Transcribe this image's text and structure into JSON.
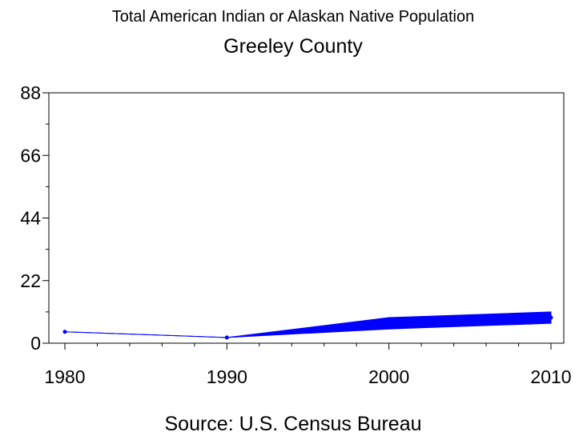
{
  "chart_data": {
    "type": "line",
    "title": "Total American Indian or Alaskan Native Population",
    "subtitle": "Greeley County",
    "source": "Source: U.S. Census Bureau",
    "xlabel": "",
    "ylabel": "",
    "x": [
      1980,
      1990,
      2000,
      2010
    ],
    "xticks": [
      "1980",
      "1990",
      "2000",
      "2010"
    ],
    "yticks": [
      "0",
      "22",
      "44",
      "66",
      "88"
    ],
    "ylim": [
      0,
      88
    ],
    "xlim": [
      1980,
      2010
    ],
    "grid": false,
    "series": [
      {
        "values": [
          4,
          2,
          6,
          9
        ],
        "band_low": [
          4,
          2,
          5,
          7
        ],
        "band_high": [
          4,
          2,
          9,
          11
        ],
        "color": "#0000ff"
      }
    ]
  }
}
